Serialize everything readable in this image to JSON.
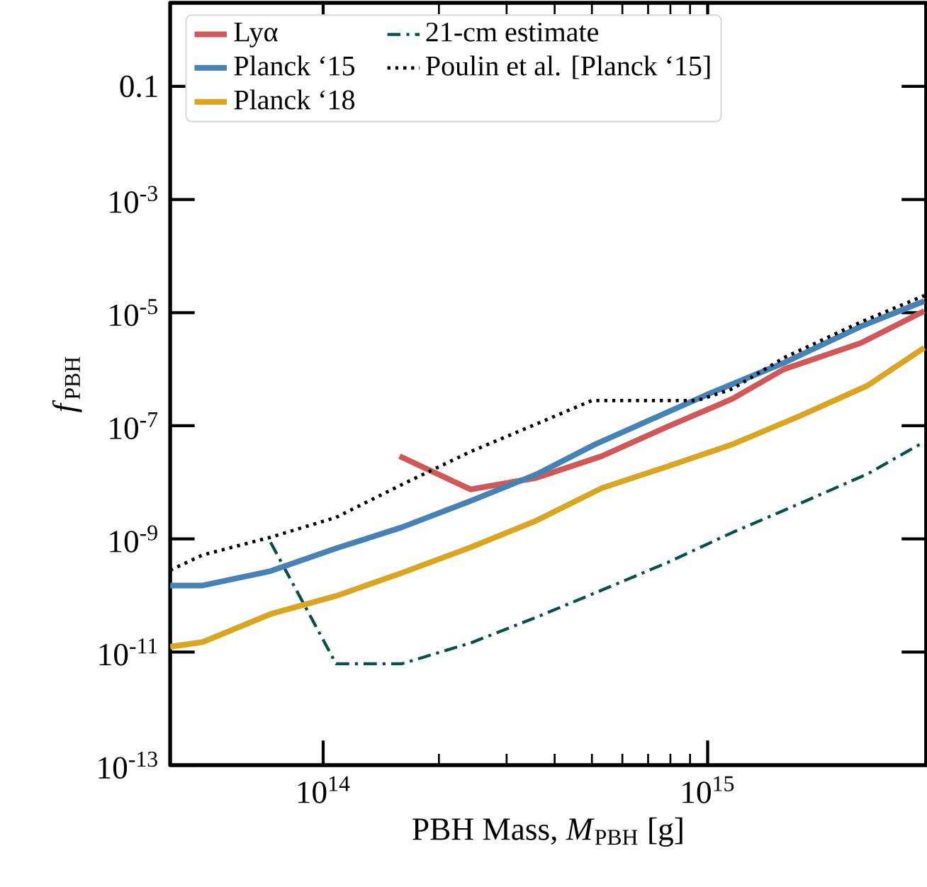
{
  "chart_data": {
    "type": "line",
    "xlabel": "PBH Mass, *M*$_{PBH}$ [g]",
    "ylabel": "*f*$_{PBH}$",
    "log": "xy",
    "xlim": [
      40000000000000.0,
      3700000000000000.0
    ],
    "ylim": [
      1e-13,
      3
    ],
    "xticks": [
      {
        "value": 100000000000000.0,
        "label": "10$^{14}$"
      },
      {
        "value": 1000000000000000.0,
        "label": "10$^{15}$"
      }
    ],
    "yticks": [
      {
        "value": 1e-13,
        "label": "10$^{-13}$"
      },
      {
        "value": 1e-11,
        "label": "10$^{-11}$"
      },
      {
        "value": 1e-09,
        "label": "10$^{-9}$"
      },
      {
        "value": 1e-07,
        "label": "10$^{-7}$"
      },
      {
        "value": 1e-05,
        "label": "10$^{-5}$"
      },
      {
        "value": 0.001,
        "label": "10$^{-3}$"
      },
      0.1
    ],
    "legend": "top left",
    "series": [
      {
        "name": "Lyα",
        "color": "#d05858",
        "line_style": "solid",
        "x": [
          158000000000000.0,
          242000000000000.0,
          358000000000000.0,
          530000000000000.0,
          785000000000000.0,
          1160000000000000.0,
          1580000000000000.0,
          2500000000000000.0,
          3660000000000000.0
        ],
        "values": [
          2.9e-08,
          7.5e-09,
          1.2e-08,
          2.9e-08,
          9.6e-08,
          3e-07,
          1e-06,
          2.9e-06,
          1.07e-05
        ]
      },
      {
        "name": "21-cm estimate",
        "color": "#0a4f4c",
        "line_style": "dashdot",
        "x": [
          73000000000000.0,
          108000000000000.0,
          160000000000000.0,
          242000000000000.0,
          358000000000000.0,
          530000000000000.0,
          785000000000000.0,
          1160000000000000.0,
          1720000000000000.0,
          2600000000000000.0,
          3660000000000000.0
        ],
        "values": [
          8.7e-10,
          6.2e-12,
          6.2e-12,
          1.45e-11,
          4.1e-11,
          1.24e-10,
          3.8e-10,
          1.3e-09,
          4.1e-09,
          1.4e-08,
          5.2e-08
        ]
      },
      {
        "name": "Planck ‘15",
        "color": "#4682b4",
        "line_style": "solid",
        "x": [
          40000000000000.0,
          48600000000000.0,
          73000000000000.0,
          108000000000000.0,
          160000000000000.0,
          242000000000000.0,
          360000000000000.0,
          510000000000000.0,
          1000000000000000.0,
          1580000000000000.0,
          2500000000000000.0,
          3660000000000000.0
        ],
        "values": [
          1.5e-10,
          1.5e-10,
          2.7e-10,
          6.8e-10,
          1.6e-09,
          4.7e-09,
          1.4e-08,
          4.7e-08,
          3.6e-07,
          1.3e-06,
          5.7e-06,
          1.6e-05
        ]
      },
      {
        "name": "Poulin et al. [Planck ‘15]",
        "color": "#000000",
        "line_style": "dotted",
        "x": [
          40000000000000.0,
          48600000000000.0,
          73000000000000.0,
          108000000000000.0,
          160000000000000.0,
          242000000000000.0,
          358000000000000.0,
          500000000000000.0,
          940000000000000.0,
          1160000000000000.0,
          1580000000000000.0,
          2500000000000000.0,
          3660000000000000.0
        ],
        "values": [
          2.8e-10,
          5.2e-10,
          1.07e-09,
          2.4e-09,
          9.1e-09,
          3.5e-08,
          1.07e-07,
          2.8e-07,
          2.8e-07,
          4.5e-07,
          1.6e-06,
          6.8e-06,
          2e-05
        ]
      },
      {
        "name": "Planck ‘18",
        "color": "#daa520",
        "line_style": "solid",
        "x": [
          40000000000000.0,
          48600000000000.0,
          73000000000000.0,
          108000000000000.0,
          160000000000000.0,
          242000000000000.0,
          358000000000000.0,
          530000000000000.0,
          785000000000000.0,
          1160000000000000.0,
          1720000000000000.0,
          2600000000000000.0,
          3660000000000000.0
        ],
        "values": [
          1.24e-11,
          1.5e-11,
          4.7e-11,
          9.8e-11,
          2.5e-10,
          7.1e-10,
          2.1e-09,
          7.9e-09,
          1.9e-08,
          4.7e-08,
          1.45e-07,
          5.1e-07,
          2.4e-06
        ]
      }
    ]
  }
}
